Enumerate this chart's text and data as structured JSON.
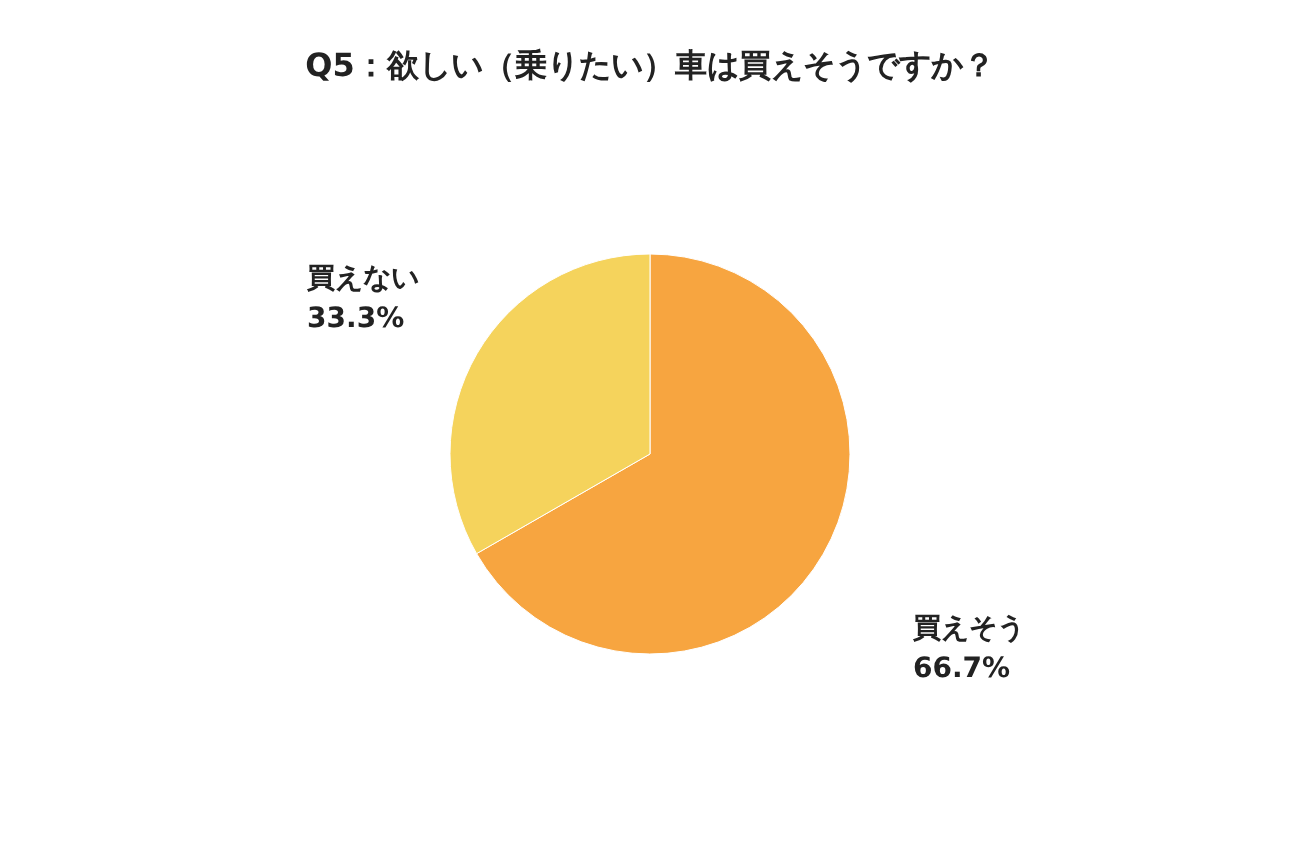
{
  "chart_data": {
    "type": "pie",
    "title": "Q5：欲しい（乗りたい）車は買えそうですか？",
    "categories": [
      "買えそう",
      "買えない"
    ],
    "values": [
      66.7,
      33.3
    ],
    "value_labels": [
      "66.7%",
      "33.3%"
    ],
    "colors": [
      "#f7a540",
      "#f5d35c"
    ],
    "legend": false
  }
}
